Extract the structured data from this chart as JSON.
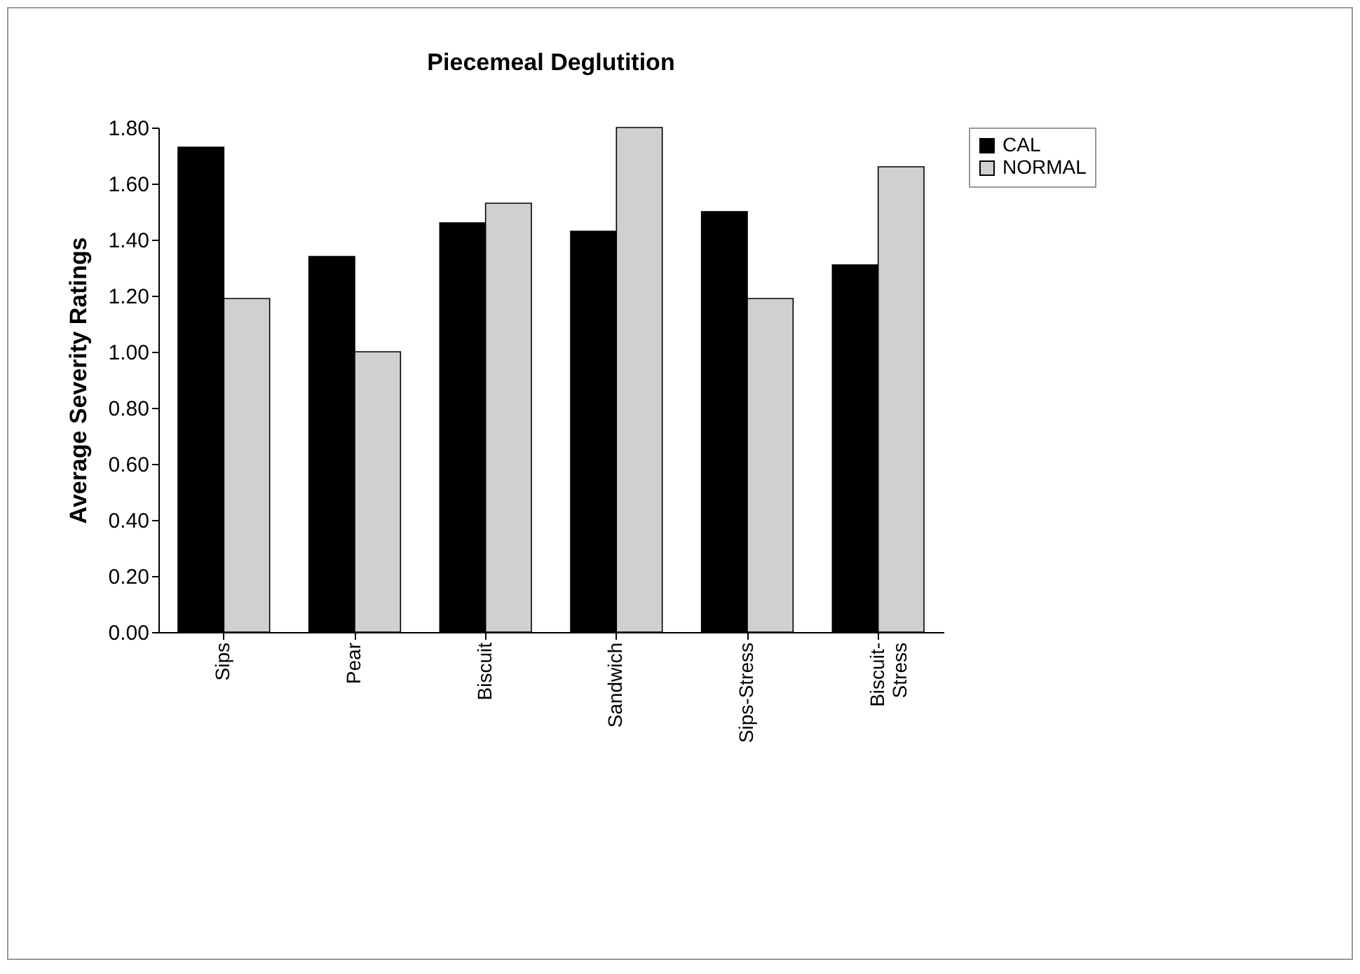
{
  "chart_data": {
    "type": "bar",
    "title": "Piecemeal Deglutition",
    "ylabel": "Average Severity Ratings",
    "categories": [
      "Sips",
      "Pear",
      "Biscuit",
      "Sandwich",
      "Sips-Stress",
      "Biscuit-\nStress"
    ],
    "series": [
      {
        "name": "CAL",
        "color": "#000000",
        "values": [
          1.73,
          1.34,
          1.46,
          1.43,
          1.5,
          1.31
        ]
      },
      {
        "name": "NORMAL",
        "color": "#d0d0d0",
        "values": [
          1.19,
          1.0,
          1.53,
          1.8,
          1.19,
          1.66
        ]
      }
    ],
    "ylim": [
      0,
      1.8
    ],
    "yticks": [
      {
        "value": 0,
        "label": "0.00"
      },
      {
        "value": 0.2,
        "label": "0.20"
      },
      {
        "value": 0.4,
        "label": "0.40"
      },
      {
        "value": 0.6,
        "label": "0.60"
      },
      {
        "value": 0.8,
        "label": "0.80"
      },
      {
        "value": 1,
        "label": "1.00"
      },
      {
        "value": 1.2,
        "label": "1.20"
      },
      {
        "value": 1.4,
        "label": "1.40"
      },
      {
        "value": 1.6,
        "label": "1.60"
      },
      {
        "value": 1.8,
        "label": "1.80"
      }
    ],
    "grid": false,
    "legend": "right"
  }
}
